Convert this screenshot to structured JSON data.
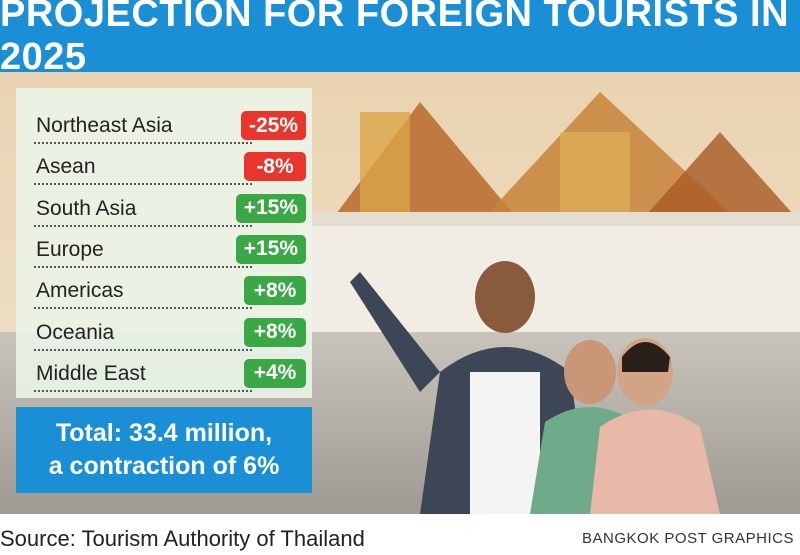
{
  "title": "PROJECTION FOR FOREIGN TOURISTS IN 2025",
  "chart_data": {
    "type": "table",
    "title": "PROJECTION FOR FOREIGN TOURISTS IN 2025",
    "rows": [
      {
        "region": "Northeast Asia",
        "change_label": "-25%",
        "change": -25
      },
      {
        "region": "Asean",
        "change_label": "-8%",
        "change": -8
      },
      {
        "region": "South Asia",
        "change_label": "+15%",
        "change": 15
      },
      {
        "region": "Europe",
        "change_label": "+15%",
        "change": 15
      },
      {
        "region": "Americas",
        "change_label": "+8%",
        "change": 8
      },
      {
        "region": "Oceania",
        "change_label": "+8%",
        "change": 8
      },
      {
        "region": "Middle East",
        "change_label": "+4%",
        "change": 4
      }
    ]
  },
  "colors": {
    "header_bg": "#1a8fd6",
    "negative": "#e8362d",
    "positive": "#3aa845"
  },
  "total": {
    "line1": "Total: 33.4 million,",
    "line2": "a contraction of 6%"
  },
  "source": "Source: Tourism Authority of Thailand",
  "credit": "BANGKOK POST GRAPHICS"
}
